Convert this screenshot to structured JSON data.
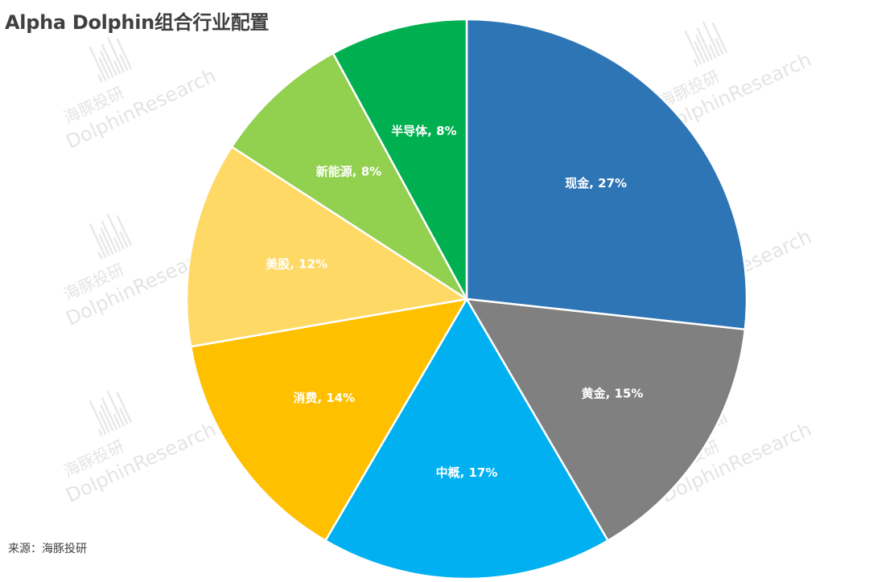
{
  "title": "Alpha Dolphin组合行业配置",
  "source": "来源：海豚投研",
  "watermark": {
    "line1": "海豚投研",
    "line2": "DolphinResearch"
  },
  "chart_data": {
    "type": "pie",
    "title": "Alpha Dolphin组合行业配置",
    "start_angle_deg": 0,
    "direction": "clockwise",
    "slices": [
      {
        "label": "现金, 27%",
        "name": "现金",
        "value": 27,
        "color": "#2E75B6"
      },
      {
        "label": "黄金, 15%",
        "name": "黄金",
        "value": 15,
        "color": "#808080"
      },
      {
        "label": "中概, 17%",
        "name": "中概",
        "value": 17,
        "color": "#00B0F0"
      },
      {
        "label": "消费, 14%",
        "name": "消费",
        "value": 14,
        "color": "#FFC000"
      },
      {
        "label": "美股, 12%",
        "name": "美股",
        "value": 12,
        "color": "#FFD966"
      },
      {
        "label": "新能源, 8%",
        "name": "新能源",
        "value": 8,
        "color": "#92D050"
      },
      {
        "label": "半导体, 8%",
        "name": "半导体",
        "value": 8,
        "color": "#00B050"
      }
    ]
  }
}
